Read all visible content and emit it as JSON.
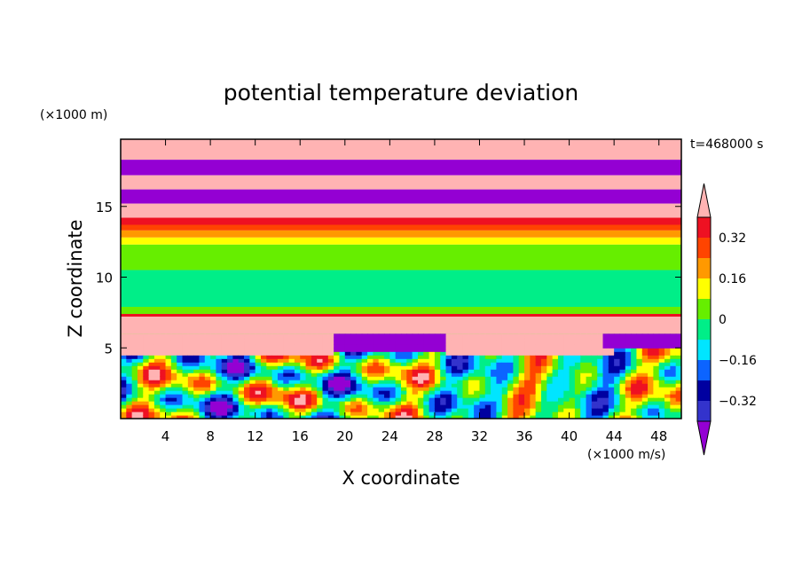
{
  "chart_data": {
    "type": "heatmap",
    "title": "potential temperature deviation",
    "time_label": "t=468000 s",
    "xlabel": "X coordinate",
    "ylabel": "Z coordinate",
    "x_unit": "(×1000 m/s)",
    "y_unit": "(×1000 m)",
    "xlim": [
      0,
      50
    ],
    "ylim": [
      0,
      19.75
    ],
    "xticks": [
      4,
      8,
      12,
      16,
      20,
      24,
      28,
      32,
      36,
      40,
      44,
      48
    ],
    "yticks": [
      5,
      10,
      15
    ],
    "colorbar": {
      "tick_labels": [
        "0.32",
        "0.16",
        "0",
        "-0.16",
        "-0.32"
      ],
      "tick_values": [
        0.32,
        0.16,
        0,
        -0.16,
        -0.32
      ],
      "levels": [
        -0.4,
        -0.32,
        -0.24,
        -0.16,
        -0.08,
        0,
        0.08,
        0.16,
        0.24,
        0.32,
        0.4
      ],
      "colors": [
        "#9400d3",
        "#3333cc",
        "#0000a0",
        "#0c64ff",
        "#00e5ff",
        "#00ee88",
        "#66ee00",
        "#ffff00",
        "#ff9900",
        "#ff4400",
        "#ee1122",
        "#ffb3b3"
      ],
      "extend": "both"
    },
    "bands": [
      {
        "z": [
          18.3,
          19.75
        ],
        "value": 0.45
      },
      {
        "z": [
          17.2,
          18.3
        ],
        "value": -0.45
      },
      {
        "z": [
          16.2,
          17.2
        ],
        "value": 0.45
      },
      {
        "z": [
          15.2,
          16.2
        ],
        "value": -0.45
      },
      {
        "z": [
          14.2,
          15.2
        ],
        "value": 0.45
      },
      {
        "z": [
          13.7,
          14.2
        ],
        "value": 0.36
      },
      {
        "z": [
          13.3,
          13.7
        ],
        "value": 0.28
      },
      {
        "z": [
          12.8,
          13.3
        ],
        "value": 0.2
      },
      {
        "z": [
          12.3,
          12.8
        ],
        "value": 0.12
      },
      {
        "z": [
          10.5,
          12.3
        ],
        "value": 0.04
      },
      {
        "z": [
          7.9,
          10.5
        ],
        "value": -0.04
      },
      {
        "z": [
          7.4,
          7.9
        ],
        "value": 0.04
      },
      {
        "z": [
          7.2,
          7.4
        ],
        "value": 0.36
      },
      {
        "z": [
          6.0,
          7.2
        ],
        "value": 0.45
      },
      {
        "z": [
          0,
          6.0
        ],
        "value": 0.0
      }
    ]
  }
}
